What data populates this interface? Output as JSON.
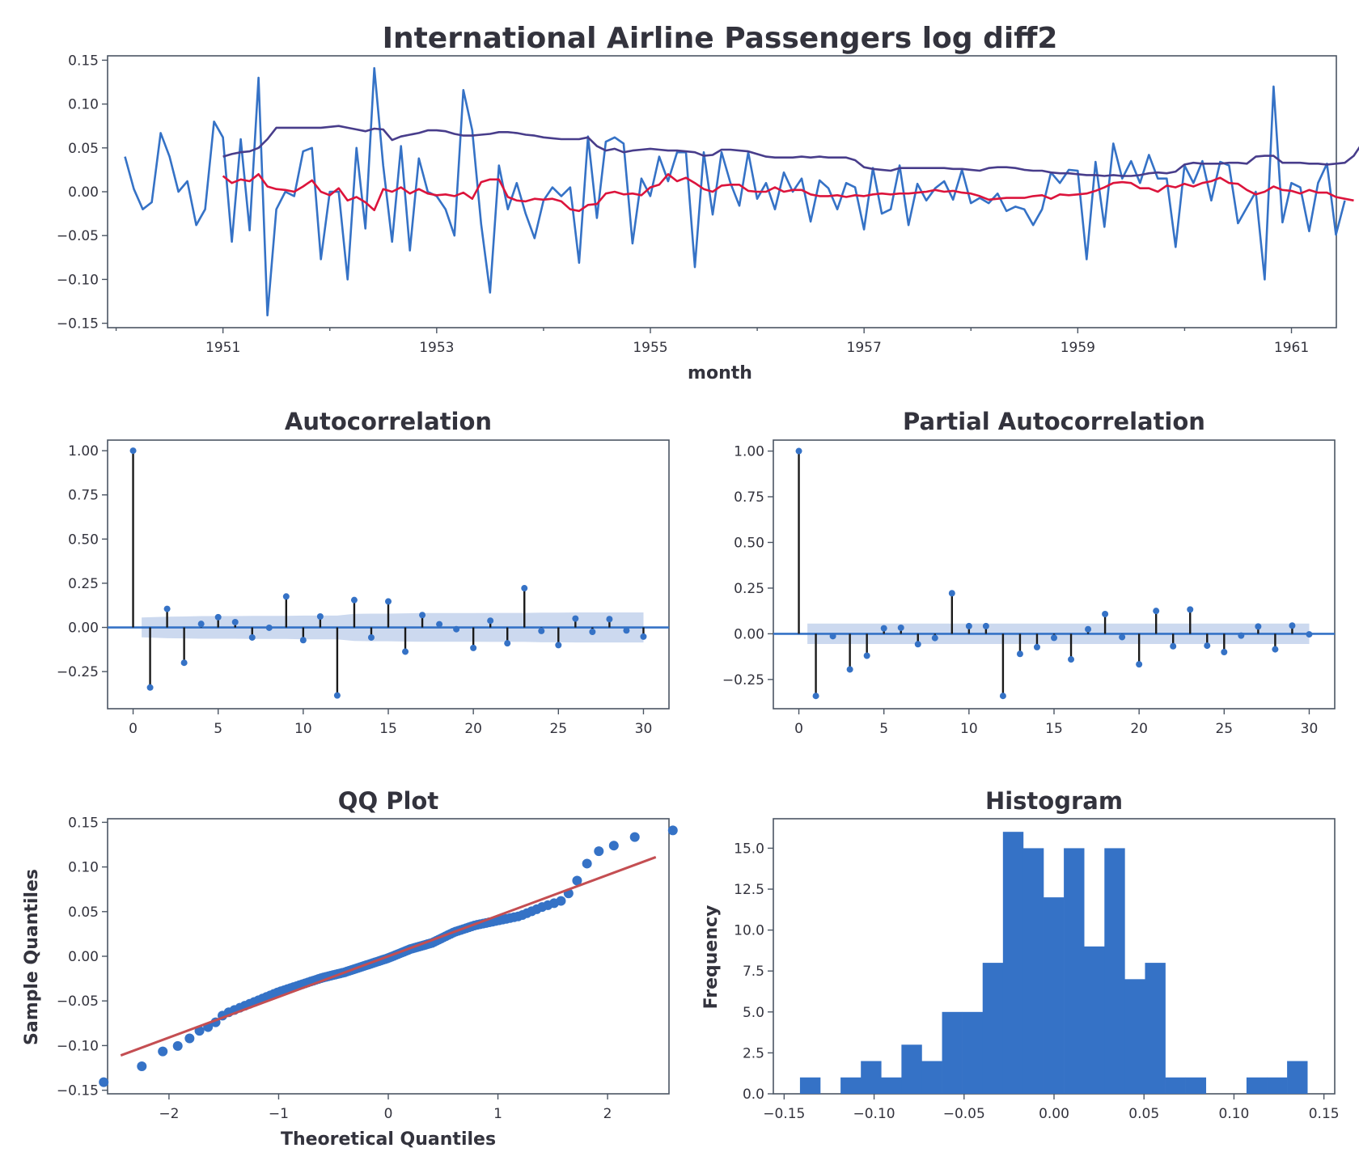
{
  "figure": {
    "title": "International Airline Passengers log diff2",
    "colors": {
      "series": "#3572c6",
      "rolling_mean": "#dc143c",
      "rolling_std": "#483d8b",
      "stem": "#1a1a1a",
      "confidence_band": "#c9d7ee",
      "qq_line": "#c44e52",
      "text": "#33333d",
      "frame": "#4b5563"
    }
  },
  "chart_data": [
    {
      "id": "timeseries",
      "type": "line",
      "title": "International Airline Passengers log diff2",
      "xlabel": "month",
      "ylabel": "",
      "xlim": [
        1949.92,
        1961.42
      ],
      "ylim": [
        -0.155,
        0.155
      ],
      "xticks": [
        1951,
        1953,
        1955,
        1957,
        1959,
        1961
      ],
      "xtick_labels": [
        "1951",
        "1953",
        "1955",
        "1957",
        "1959",
        "1961"
      ],
      "xminor_ticks": [
        1950,
        1952,
        1954,
        1956,
        1958,
        1960
      ],
      "yticks": [
        -0.15,
        -0.1,
        -0.05,
        0.0,
        0.05,
        0.1,
        0.15
      ],
      "ytick_labels": [
        "−0.15",
        "−0.10",
        "−0.05",
        "0.00",
        "0.05",
        "0.10",
        "0.15"
      ],
      "x_start": 1950.083,
      "x_step": 0.08333,
      "series": [
        {
          "key": "diff2",
          "color": "#3572c6",
          "values": [
            0.04,
            0.003,
            -0.02,
            -0.012,
            0.067,
            0.04,
            0.0,
            0.012,
            -0.038,
            -0.02,
            0.08,
            0.062,
            -0.057,
            0.06,
            -0.044,
            0.13,
            -0.141,
            -0.02,
            0.0,
            -0.005,
            0.046,
            0.05,
            -0.077,
            0.0,
            0.0,
            -0.1,
            0.05,
            -0.042,
            0.141,
            0.03,
            -0.057,
            0.052,
            -0.067,
            0.038,
            0.0,
            -0.005,
            -0.02,
            -0.05,
            0.116,
            0.07,
            -0.037,
            -0.115,
            0.03,
            -0.02,
            0.01,
            -0.025,
            -0.053,
            -0.01,
            0.005,
            -0.005,
            0.005,
            -0.081,
            0.063,
            -0.03,
            0.057,
            0.062,
            0.055,
            -0.059,
            0.015,
            -0.005,
            0.04,
            0.012,
            0.045,
            0.045,
            -0.086,
            0.045,
            -0.026,
            0.045,
            0.01,
            -0.016,
            0.045,
            -0.008,
            0.01,
            -0.02,
            0.022,
            0.0,
            0.015,
            -0.034,
            0.013,
            0.004,
            -0.02,
            0.01,
            0.005,
            -0.043,
            0.027,
            -0.025,
            -0.02,
            0.03,
            -0.038,
            0.009,
            -0.01,
            0.004,
            0.012,
            -0.009,
            0.025,
            -0.013,
            -0.007,
            -0.013,
            -0.002,
            -0.022,
            -0.017,
            -0.02,
            -0.038,
            -0.02,
            0.022,
            0.01,
            0.025,
            0.024,
            -0.077,
            0.034,
            -0.04,
            0.055,
            0.015,
            0.035,
            0.01,
            0.042,
            0.015,
            0.015,
            -0.063,
            0.03,
            0.01,
            0.035,
            -0.01,
            0.034,
            0.03,
            -0.036,
            -0.018,
            0.0,
            -0.1,
            0.12,
            -0.035,
            0.01,
            0.005,
            -0.045,
            0.01,
            0.032,
            -0.049,
            -0.01
          ]
        },
        {
          "key": "rolling_mean",
          "color": "#dc143c",
          "start_index": 11,
          "values": [
            0.018,
            0.01,
            0.014,
            0.012,
            0.02,
            0.006,
            0.003,
            0.002,
            0.0,
            0.006,
            0.013,
            0.0,
            -0.004,
            0.004,
            -0.01,
            -0.006,
            -0.012,
            -0.021,
            0.003,
            0.0,
            0.005,
            -0.002,
            0.003,
            -0.002,
            -0.004,
            -0.003,
            -0.005,
            -0.001,
            -0.008,
            0.011,
            0.014,
            0.014,
            -0.006,
            -0.01,
            -0.011,
            -0.008,
            -0.009,
            -0.008,
            -0.011,
            -0.02,
            -0.022,
            -0.015,
            -0.014,
            -0.002,
            0.0,
            -0.003,
            -0.002,
            -0.004,
            0.005,
            0.008,
            0.02,
            0.012,
            0.016,
            0.01,
            0.003,
            0.0,
            0.007,
            0.008,
            0.008,
            0.001,
            0.0,
            0.0,
            0.005,
            0.0,
            0.002,
            0.002,
            -0.003,
            -0.005,
            -0.005,
            -0.004,
            -0.006,
            -0.004,
            -0.005,
            -0.003,
            -0.002,
            -0.003,
            -0.002,
            -0.002,
            -0.001,
            0.0,
            0.002,
            0.0,
            0.001,
            -0.001,
            -0.002,
            -0.005,
            -0.009,
            -0.008,
            -0.007,
            -0.007,
            -0.007,
            -0.005,
            -0.004,
            -0.008,
            -0.003,
            -0.004,
            -0.003,
            -0.002,
            0.001,
            0.005,
            0.01,
            0.011,
            0.01,
            0.004,
            0.004,
            0.0,
            0.007,
            0.005,
            0.009,
            0.006,
            0.01,
            0.012,
            0.016,
            0.01,
            0.009,
            0.002,
            -0.003,
            0.0,
            0.006,
            0.002,
            0.001,
            -0.002,
            0.002,
            -0.001,
            -0.001,
            -0.006,
            -0.008,
            -0.01
          ]
        },
        {
          "key": "rolling_std",
          "color": "#483d8b",
          "start_index": 11,
          "values": [
            0.04,
            0.043,
            0.045,
            0.046,
            0.05,
            0.06,
            0.073,
            0.073,
            0.073,
            0.073,
            0.073,
            0.073,
            0.074,
            0.075,
            0.073,
            0.071,
            0.069,
            0.072,
            0.071,
            0.059,
            0.063,
            0.065,
            0.067,
            0.07,
            0.07,
            0.069,
            0.066,
            0.064,
            0.064,
            0.065,
            0.066,
            0.068,
            0.068,
            0.067,
            0.065,
            0.064,
            0.062,
            0.061,
            0.06,
            0.06,
            0.06,
            0.062,
            0.052,
            0.047,
            0.049,
            0.045,
            0.047,
            0.048,
            0.049,
            0.048,
            0.047,
            0.047,
            0.046,
            0.045,
            0.041,
            0.042,
            0.048,
            0.048,
            0.047,
            0.046,
            0.043,
            0.04,
            0.039,
            0.039,
            0.039,
            0.04,
            0.039,
            0.04,
            0.039,
            0.039,
            0.039,
            0.036,
            0.028,
            0.026,
            0.025,
            0.024,
            0.027,
            0.027,
            0.027,
            0.027,
            0.027,
            0.027,
            0.026,
            0.026,
            0.025,
            0.024,
            0.027,
            0.028,
            0.028,
            0.027,
            0.025,
            0.024,
            0.024,
            0.022,
            0.021,
            0.021,
            0.02,
            0.019,
            0.019,
            0.018,
            0.019,
            0.018,
            0.018,
            0.019,
            0.021,
            0.022,
            0.021,
            0.023,
            0.031,
            0.033,
            0.032,
            0.032,
            0.032,
            0.033,
            0.033,
            0.032,
            0.04,
            0.041,
            0.041,
            0.033,
            0.033,
            0.033,
            0.032,
            0.032,
            0.031,
            0.032,
            0.033,
            0.041,
            0.056,
            0.058,
            0.057,
            0.055,
            0.055,
            0.055,
            0.056,
            0.056,
            0.054
          ]
        }
      ]
    },
    {
      "id": "acf",
      "type": "stem",
      "title": "Autocorrelation",
      "xlabel": "",
      "ylabel": "",
      "xlim": [
        -1.5,
        31.5
      ],
      "ylim": [
        -0.46,
        1.06
      ],
      "xticks": [
        0,
        5,
        10,
        15,
        20,
        25,
        30
      ],
      "xtick_labels": [
        "0",
        "5",
        "10",
        "15",
        "20",
        "25",
        "30"
      ],
      "yticks": [
        -0.25,
        0.0,
        0.25,
        0.5,
        0.75,
        1.0
      ],
      "ytick_labels": [
        "−0.25",
        "0.00",
        "0.25",
        "0.50",
        "0.75",
        "1.00"
      ],
      "lags": [
        0,
        1,
        2,
        3,
        4,
        5,
        6,
        7,
        8,
        9,
        10,
        11,
        12,
        13,
        14,
        15,
        16,
        17,
        18,
        19,
        20,
        21,
        22,
        23,
        24,
        25,
        26,
        27,
        28,
        29,
        30
      ],
      "values": [
        1.0,
        -0.34,
        0.105,
        -0.2,
        0.02,
        0.058,
        0.03,
        -0.057,
        -0.002,
        0.175,
        -0.072,
        0.062,
        -0.385,
        0.155,
        -0.057,
        0.147,
        -0.137,
        0.07,
        0.018,
        -0.01,
        -0.116,
        0.038,
        -0.09,
        0.222,
        -0.02,
        -0.1,
        0.05,
        -0.025,
        0.047,
        -0.017,
        -0.052
      ],
      "conf_band": [
        0.0,
        0.056,
        0.061,
        0.062,
        0.064,
        0.064,
        0.064,
        0.065,
        0.065,
        0.065,
        0.067,
        0.067,
        0.067,
        0.077,
        0.078,
        0.078,
        0.08,
        0.081,
        0.081,
        0.081,
        0.081,
        0.082,
        0.082,
        0.082,
        0.084,
        0.084,
        0.085,
        0.085,
        0.085,
        0.085,
        0.085
      ]
    },
    {
      "id": "pacf",
      "type": "stem",
      "title": "Partial Autocorrelation",
      "xlabel": "",
      "ylabel": "",
      "xlim": [
        -1.5,
        31.5
      ],
      "ylim": [
        -0.41,
        1.06
      ],
      "xticks": [
        0,
        5,
        10,
        15,
        20,
        25,
        30
      ],
      "xtick_labels": [
        "0",
        "5",
        "10",
        "15",
        "20",
        "25",
        "30"
      ],
      "yticks": [
        -0.25,
        0.0,
        0.25,
        0.5,
        0.75,
        1.0
      ],
      "ytick_labels": [
        "−0.25",
        "0.00",
        "0.25",
        "0.50",
        "0.75",
        "1.00"
      ],
      "lags": [
        0,
        1,
        2,
        3,
        4,
        5,
        6,
        7,
        8,
        9,
        10,
        11,
        12,
        13,
        14,
        15,
        16,
        17,
        18,
        19,
        20,
        21,
        22,
        23,
        24,
        25,
        26,
        27,
        28,
        29,
        30
      ],
      "values": [
        1.0,
        -0.34,
        -0.013,
        -0.195,
        -0.12,
        0.03,
        0.033,
        -0.057,
        -0.023,
        0.222,
        0.042,
        0.042,
        -0.34,
        -0.11,
        -0.073,
        -0.022,
        -0.14,
        0.025,
        0.108,
        -0.018,
        -0.167,
        0.125,
        -0.068,
        0.133,
        -0.065,
        -0.1,
        -0.01,
        0.04,
        -0.085,
        0.045,
        -0.003
      ],
      "conf_band": [
        0.0,
        0.056,
        0.056,
        0.056,
        0.056,
        0.056,
        0.056,
        0.056,
        0.056,
        0.056,
        0.056,
        0.056,
        0.056,
        0.056,
        0.056,
        0.056,
        0.056,
        0.056,
        0.056,
        0.056,
        0.056,
        0.056,
        0.056,
        0.056,
        0.056,
        0.056,
        0.056,
        0.056,
        0.056,
        0.056,
        0.056
      ]
    },
    {
      "id": "qq",
      "type": "scatter",
      "title": "QQ Plot",
      "xlabel": "Theoretical Quantiles",
      "ylabel": "Sample Quantiles",
      "xlim": [
        -2.56,
        2.56
      ],
      "ylim": [
        -0.154,
        0.154
      ],
      "xticks": [
        -2,
        -1,
        0,
        1,
        2
      ],
      "xtick_labels": [
        "−2",
        "−1",
        "0",
        "1",
        "2"
      ],
      "yticks": [
        -0.15,
        -0.1,
        -0.05,
        0.0,
        0.05,
        0.1,
        0.15
      ],
      "ytick_labels": [
        "−0.15",
        "−0.10",
        "−0.05",
        "0.00",
        "0.05",
        "0.10",
        "0.15"
      ],
      "n_points": 132,
      "ref_line": {
        "x": [
          -2.44,
          2.44
        ],
        "y": [
          -0.111,
          0.111
        ]
      },
      "sample_anchors_x": [
        -2.44,
        -2.16,
        -1.99,
        -1.87,
        -1.77,
        -1.6,
        -1.5,
        -1.2,
        -1.0,
        -0.8,
        -0.6,
        -0.4,
        -0.2,
        0.0,
        0.2,
        0.4,
        0.6,
        0.8,
        1.0,
        1.2,
        1.4,
        1.6,
        1.7,
        1.87,
        1.99,
        2.16,
        2.44
      ],
      "sample_anchors_y": [
        -0.141,
        -0.115,
        -0.101,
        -0.1,
        -0.086,
        -0.077,
        -0.065,
        -0.05,
        -0.04,
        -0.032,
        -0.024,
        -0.018,
        -0.01,
        -0.002,
        0.008,
        0.015,
        0.027,
        0.035,
        0.04,
        0.045,
        0.055,
        0.063,
        0.08,
        0.116,
        0.12,
        0.13,
        0.141
      ]
    },
    {
      "id": "hist",
      "type": "bar",
      "title": "Histogram",
      "xlabel": "",
      "ylabel": "Frequency",
      "xlim": [
        -0.156,
        0.156
      ],
      "ylim": [
        0,
        16.8
      ],
      "xticks": [
        -0.15,
        -0.1,
        -0.05,
        0.0,
        0.05,
        0.1,
        0.15
      ],
      "xtick_labels": [
        "−0.15",
        "−0.10",
        "−0.05",
        "0.00",
        "0.05",
        "0.10",
        "0.15"
      ],
      "yticks": [
        0.0,
        2.5,
        5.0,
        7.5,
        10.0,
        12.5,
        15.0
      ],
      "ytick_labels": [
        "0.0",
        "2.5",
        "5.0",
        "7.5",
        "10.0",
        "12.5",
        "15.0"
      ],
      "bin_start": -0.1412,
      "bin_width": 0.01128,
      "counts": [
        1,
        0,
        1,
        2,
        1,
        3,
        2,
        5,
        5,
        8,
        16,
        15,
        12,
        15,
        9,
        15,
        7,
        8,
        1,
        1,
        0,
        0,
        1,
        1,
        2
      ]
    }
  ]
}
